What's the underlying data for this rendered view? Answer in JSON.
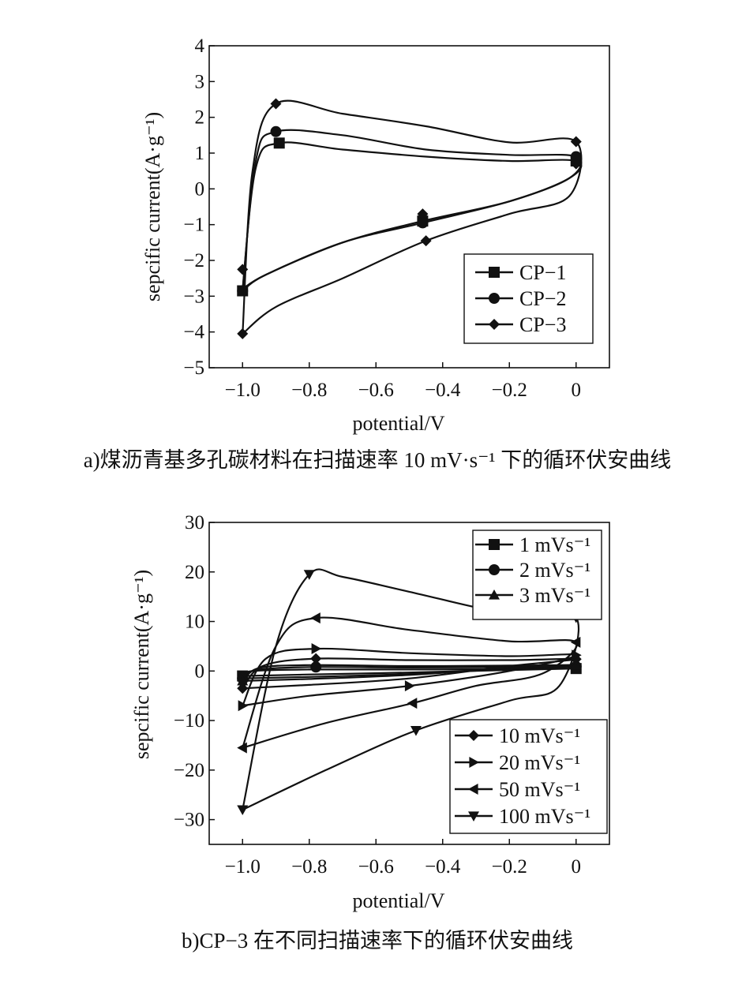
{
  "chart_data": [
    {
      "type": "line",
      "panel": "a",
      "caption": "a)煤沥青基多孔碳材料在扫描速率 10 mV·s⁻¹ 下的循环伏安曲线",
      "xlabel": "potential/V",
      "ylabel": "sepcific current(A·g⁻¹)",
      "xlim": [
        -1.1,
        0.1
      ],
      "ylim": [
        -5,
        4
      ],
      "xticks": [
        -1.0,
        -0.8,
        -0.6,
        -0.4,
        -0.2,
        0
      ],
      "xtick_labels": [
        "−1.0",
        "−0.8",
        "−0.6",
        "−0.4",
        "−0.2",
        "0"
      ],
      "yticks": [
        4,
        3,
        2,
        1,
        0,
        -1,
        -2,
        -3,
        -4,
        -5
      ],
      "ytick_labels": [
        "4",
        "3",
        "2",
        "1",
        "0",
        "−1",
        "−2",
        "−3",
        "−4",
        "−5"
      ],
      "legend_position": "bottom-right",
      "series": [
        {
          "name": "CP−1",
          "marker": "square",
          "points": [
            [
              -1.0,
              -2.8
            ],
            [
              -0.96,
              0.6
            ],
            [
              -0.89,
              1.28
            ],
            [
              -0.7,
              1.1
            ],
            [
              -0.45,
              0.9
            ],
            [
              -0.2,
              0.78
            ],
            [
              0.0,
              0.78
            ],
            [
              -0.02,
              0.3
            ],
            [
              -0.2,
              -0.35
            ],
            [
              -0.46,
              -0.9
            ],
            [
              -0.7,
              -1.5
            ],
            [
              -0.93,
              -2.4
            ],
            [
              -1.0,
              -2.8
            ]
          ],
          "marker_points": [
            [
              -1.0,
              -2.85
            ],
            [
              -0.89,
              1.28
            ],
            [
              -0.46,
              -0.9
            ],
            [
              0.0,
              0.78
            ]
          ]
        },
        {
          "name": "CP−2",
          "marker": "circle",
          "points": [
            [
              -1.0,
              -2.85
            ],
            [
              -0.96,
              0.8
            ],
            [
              -0.9,
              1.6
            ],
            [
              -0.7,
              1.5
            ],
            [
              -0.45,
              1.1
            ],
            [
              -0.2,
              0.95
            ],
            [
              0.0,
              0.9
            ],
            [
              -0.02,
              0.3
            ],
            [
              -0.2,
              -0.35
            ],
            [
              -0.46,
              -0.95
            ],
            [
              -0.7,
              -1.5
            ],
            [
              -0.93,
              -2.4
            ],
            [
              -1.0,
              -2.85
            ]
          ],
          "marker_points": [
            [
              -1.0,
              -2.85
            ],
            [
              -0.9,
              1.6
            ],
            [
              -0.46,
              -0.95
            ],
            [
              0.0,
              0.9
            ]
          ]
        },
        {
          "name": "CP−3",
          "marker": "diamond",
          "points": [
            [
              -1.0,
              -4.05
            ],
            [
              -0.97,
              0.5
            ],
            [
              -0.9,
              2.38
            ],
            [
              -0.7,
              2.1
            ],
            [
              -0.45,
              1.75
            ],
            [
              -0.2,
              1.3
            ],
            [
              0.0,
              1.32
            ],
            [
              -0.02,
              -0.2
            ],
            [
              -0.2,
              -0.7
            ],
            [
              -0.45,
              -1.45
            ],
            [
              -0.7,
              -2.5
            ],
            [
              -0.9,
              -3.3
            ],
            [
              -1.0,
              -4.05
            ]
          ],
          "marker_points": [
            [
              -1.0,
              -4.05
            ],
            [
              -0.9,
              2.38
            ],
            [
              -0.45,
              -1.45
            ],
            [
              0.0,
              1.32
            ],
            [
              -1.0,
              -2.25
            ],
            [
              -0.46,
              -0.7
            ],
            [
              0.0,
              0.7
            ]
          ]
        }
      ]
    },
    {
      "type": "line",
      "panel": "b",
      "caption": "b)CP−3 在不同扫描速率下的循环伏安曲线",
      "xlabel": "potential/V",
      "ylabel": "sepcific current(A·g⁻¹)",
      "xlim": [
        -1.1,
        0.1
      ],
      "ylim": [
        -35,
        30
      ],
      "xticks": [
        -1.0,
        -0.8,
        -0.6,
        -0.4,
        -0.2,
        0
      ],
      "xtick_labels": [
        "−1.0",
        "−0.8",
        "−0.6",
        "−0.4",
        "−0.2",
        "0"
      ],
      "yticks": [
        30,
        20,
        10,
        0,
        -10,
        -20,
        -30
      ],
      "ytick_labels": [
        "30",
        "20",
        "10",
        "0",
        "−10",
        "−20",
        "−30"
      ],
      "legend_position": "top-right and bottom-right",
      "series": [
        {
          "name": "1 mVs⁻¹",
          "marker": "square",
          "points": [
            [
              -1.0,
              -1.0
            ],
            [
              -0.97,
              0.0
            ],
            [
              -0.8,
              0.3
            ],
            [
              -0.5,
              0.3
            ],
            [
              -0.2,
              0.4
            ],
            [
              0.0,
              0.5
            ],
            [
              -0.2,
              0.2
            ],
            [
              -0.5,
              -0.3
            ],
            [
              -0.8,
              -0.7
            ],
            [
              -1.0,
              -1.0
            ]
          ],
          "marker_points": [
            [
              -1.0,
              -1.0
            ],
            [
              0.0,
              0.5
            ]
          ]
        },
        {
          "name": "2 mVs⁻¹",
          "marker": "circle",
          "points": [
            [
              -1.0,
              -1.5
            ],
            [
              -0.96,
              0.2
            ],
            [
              -0.8,
              0.8
            ],
            [
              -0.5,
              0.7
            ],
            [
              -0.2,
              0.8
            ],
            [
              0.0,
              0.9
            ],
            [
              -0.2,
              0.4
            ],
            [
              -0.5,
              -0.6
            ],
            [
              -0.8,
              -1.2
            ],
            [
              -1.0,
              -1.5
            ]
          ],
          "marker_points": [
            [
              -1.0,
              -1.5
            ],
            [
              -0.78,
              0.8
            ],
            [
              0.0,
              0.9
            ]
          ]
        },
        {
          "name": "3 mVs⁻¹",
          "marker": "triangle-up",
          "points": [
            [
              -1.0,
              -2.0
            ],
            [
              -0.95,
              0.6
            ],
            [
              -0.8,
              1.2
            ],
            [
              -0.5,
              1.0
            ],
            [
              -0.2,
              1.1
            ],
            [
              0.0,
              1.2
            ],
            [
              -0.2,
              0.6
            ],
            [
              -0.5,
              -0.8
            ],
            [
              -0.8,
              -1.6
            ],
            [
              -1.0,
              -2.0
            ]
          ],
          "marker_points": [
            [
              -1.0,
              -2.0
            ],
            [
              -0.78,
              1.2
            ],
            [
              0.0,
              1.2
            ]
          ]
        },
        {
          "name": "10 mVs⁻¹",
          "marker": "diamond",
          "points": [
            [
              -1.0,
              -3.5
            ],
            [
              -0.94,
              1.0
            ],
            [
              -0.78,
              2.5
            ],
            [
              -0.5,
              2.2
            ],
            [
              -0.2,
              2.2
            ],
            [
              0.0,
              2.4
            ],
            [
              -0.2,
              1.0
            ],
            [
              -0.5,
              -1.5
            ],
            [
              -0.8,
              -2.8
            ],
            [
              -1.0,
              -3.5
            ]
          ],
          "marker_points": [
            [
              -1.0,
              -3.5
            ],
            [
              -0.78,
              2.5
            ],
            [
              0.0,
              2.4
            ]
          ]
        },
        {
          "name": "20 mVs⁻¹",
          "marker": "triangle-right",
          "points": [
            [
              -1.0,
              -7.0
            ],
            [
              -0.93,
              2.5
            ],
            [
              -0.78,
              4.5
            ],
            [
              -0.5,
              3.6
            ],
            [
              -0.2,
              3.0
            ],
            [
              0.0,
              3.2
            ],
            [
              -0.2,
              0.0
            ],
            [
              -0.5,
              -3.0
            ],
            [
              -0.8,
              -5.0
            ],
            [
              -1.0,
              -7.0
            ]
          ],
          "marker_points": [
            [
              -1.0,
              -7.0
            ],
            [
              -0.78,
              4.5
            ],
            [
              -0.5,
              -3.0
            ],
            [
              0.0,
              3.2
            ]
          ]
        },
        {
          "name": "50 mVs⁻¹",
          "marker": "triangle-left",
          "points": [
            [
              -1.0,
              -15.5
            ],
            [
              -0.9,
              5.0
            ],
            [
              -0.78,
              10.7
            ],
            [
              -0.5,
              8.3
            ],
            [
              -0.2,
              6.0
            ],
            [
              0.0,
              5.8
            ],
            [
              -0.1,
              -0.5
            ],
            [
              -0.3,
              -3.0
            ],
            [
              -0.49,
              -6.5
            ],
            [
              -0.75,
              -10.5
            ],
            [
              -1.0,
              -15.5
            ]
          ],
          "marker_points": [
            [
              -1.0,
              -15.5
            ],
            [
              -0.78,
              10.7
            ],
            [
              -0.49,
              -6.5
            ],
            [
              0.0,
              5.8
            ]
          ]
        },
        {
          "name": "100 mVs⁻¹",
          "marker": "triangle-down",
          "points": [
            [
              -1.0,
              -28.0
            ],
            [
              -0.9,
              5.0
            ],
            [
              -0.8,
              19.5
            ],
            [
              -0.7,
              19.0
            ],
            [
              -0.5,
              16.0
            ],
            [
              -0.2,
              11.5
            ],
            [
              0.0,
              10.8
            ],
            [
              -0.05,
              -3.0
            ],
            [
              -0.2,
              -6.0
            ],
            [
              -0.48,
              -12.0
            ],
            [
              -0.75,
              -20.0
            ],
            [
              -1.0,
              -28.0
            ]
          ],
          "marker_points": [
            [
              -1.0,
              -28.0
            ],
            [
              -0.8,
              19.5
            ],
            [
              -0.48,
              -12.0
            ],
            [
              0.0,
              10.8
            ]
          ]
        }
      ]
    }
  ]
}
